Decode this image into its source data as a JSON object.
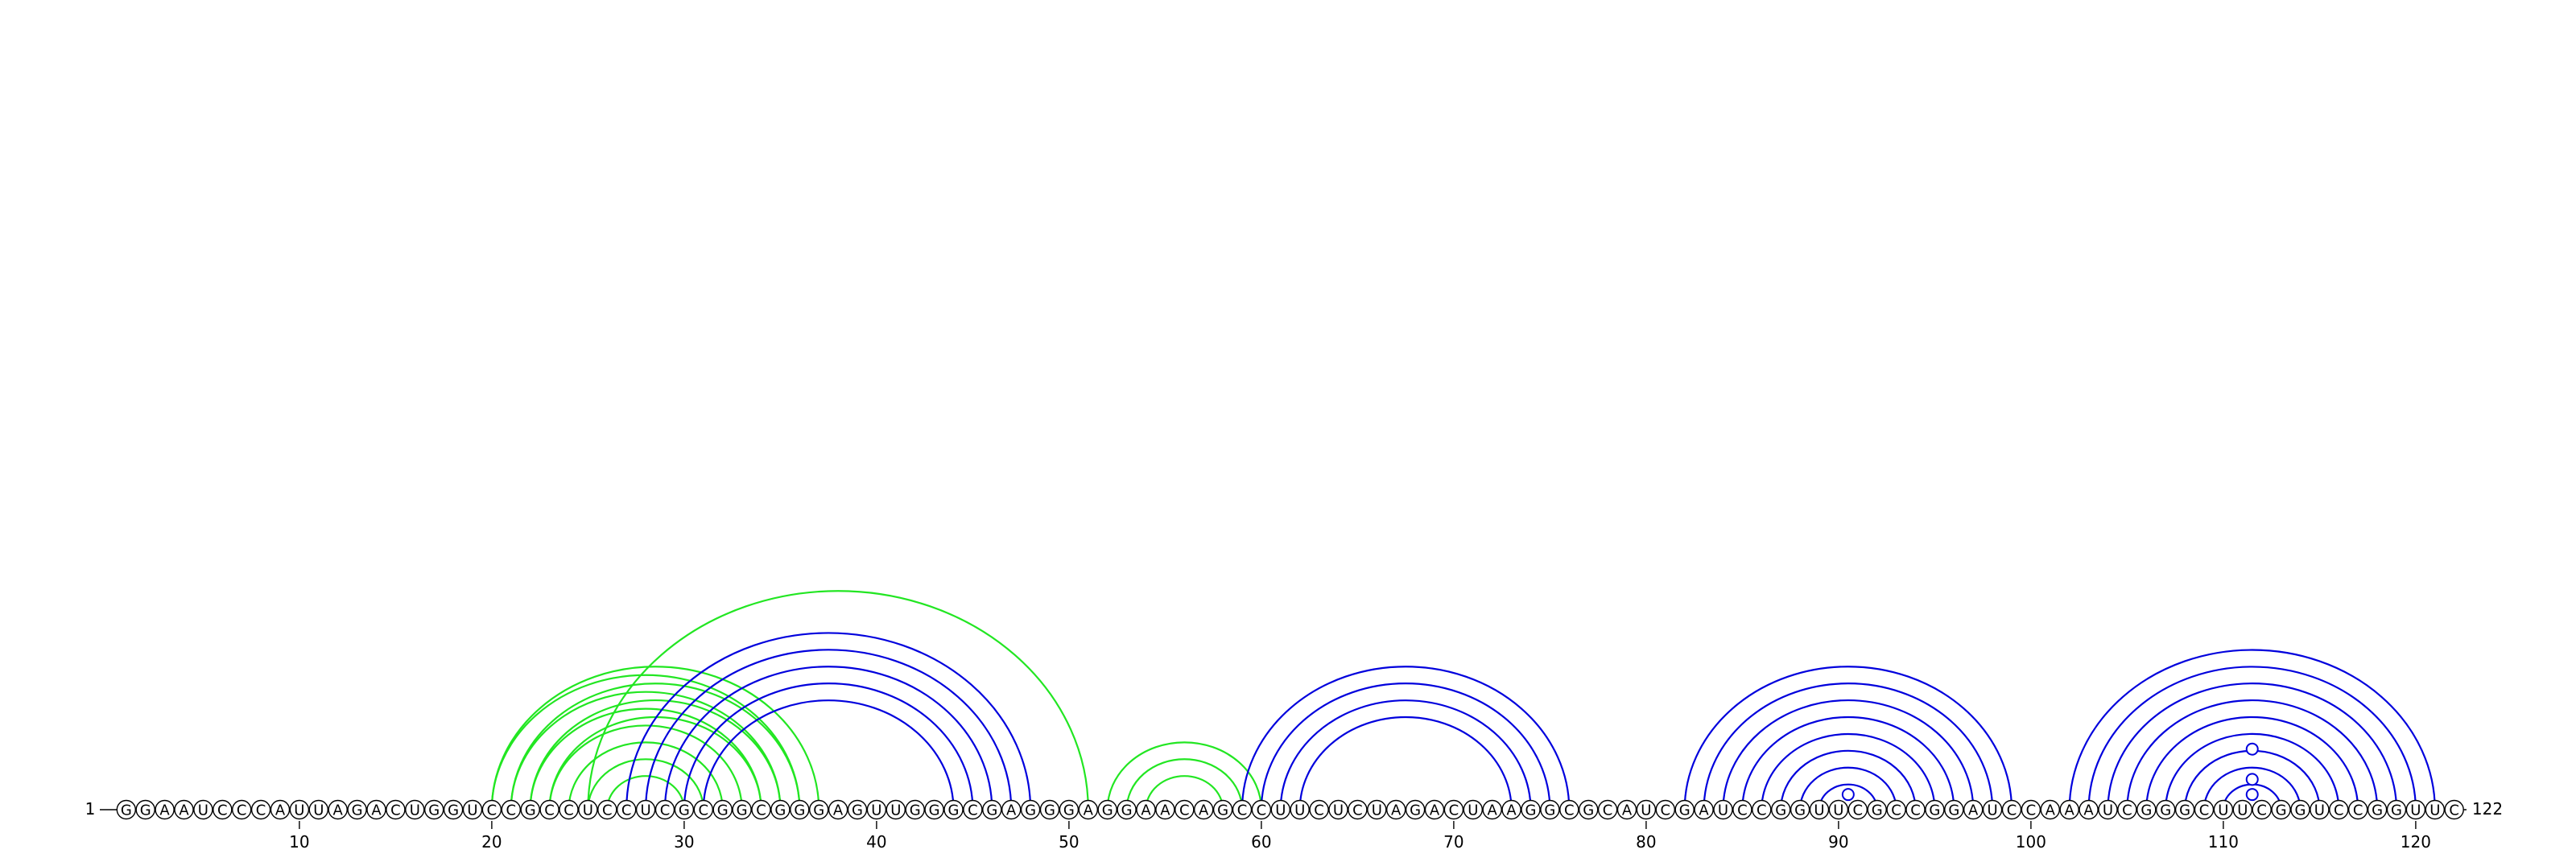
{
  "sequence": "GGAAUCCCAUUAGACUGGUCCGCCUCCUCGCGGCGGGAGUUGGGCGAGGGAGGAACAGCCUUCUCUAGACUAAGGCGCAUCGAUCCGGUUCGCCGGAUCCAAAUCGGGCUUCGGUCCGGUUC",
  "length": 122,
  "start_label": "1",
  "end_label": "122",
  "ticks": [
    "10",
    "20",
    "30",
    "40",
    "50",
    "60",
    "70",
    "80",
    "90",
    "100",
    "110",
    "120"
  ],
  "colors": {
    "blue": "#0000dd",
    "green": "#22e622",
    "text": "#000000"
  },
  "arcs_blue": [
    [
      27,
      48
    ],
    [
      28,
      47
    ],
    [
      29,
      46
    ],
    [
      30,
      45
    ],
    [
      31,
      44
    ],
    [
      59,
      76
    ],
    [
      60,
      75
    ],
    [
      61,
      74
    ],
    [
      62,
      73
    ],
    [
      82,
      99
    ],
    [
      83,
      98
    ],
    [
      84,
      97
    ],
    [
      85,
      96
    ],
    [
      86,
      95
    ],
    [
      87,
      94
    ],
    [
      88,
      93
    ],
    [
      89,
      92
    ],
    [
      102,
      121
    ],
    [
      103,
      120
    ],
    [
      104,
      119
    ],
    [
      105,
      118
    ],
    [
      106,
      117
    ],
    [
      107,
      116
    ],
    [
      108,
      115
    ],
    [
      109,
      114
    ],
    [
      110,
      113
    ]
  ],
  "arcs_green": [
    [
      20,
      36
    ],
    [
      21,
      35
    ],
    [
      22,
      34
    ],
    [
      23,
      33
    ],
    [
      24,
      32
    ],
    [
      25,
      31
    ],
    [
      26,
      30
    ],
    [
      20,
      37
    ],
    [
      21,
      36
    ],
    [
      22,
      35
    ],
    [
      23,
      34
    ],
    [
      25,
      51
    ],
    [
      52,
      60
    ],
    [
      53,
      59
    ],
    [
      54,
      58
    ]
  ],
  "loop_markers": [
    {
      "pos": 90.5,
      "level": 1
    },
    {
      "pos": 111.5,
      "level": 1
    },
    {
      "pos": 111.5,
      "level": 2
    },
    {
      "pos": 111.5,
      "level": 4
    }
  ]
}
